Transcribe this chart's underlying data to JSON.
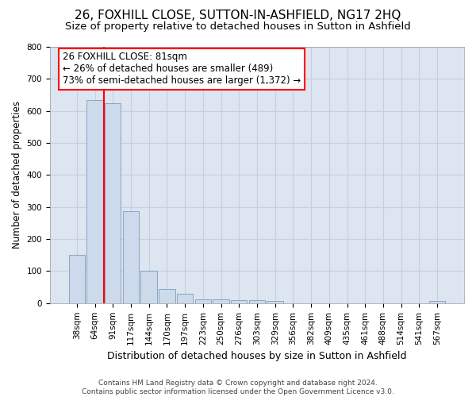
{
  "title": "26, FOXHILL CLOSE, SUTTON-IN-ASHFIELD, NG17 2HQ",
  "subtitle": "Size of property relative to detached houses in Sutton in Ashfield",
  "xlabel": "Distribution of detached houses by size in Sutton in Ashfield",
  "ylabel": "Number of detached properties",
  "footer_line1": "Contains HM Land Registry data © Crown copyright and database right 2024.",
  "footer_line2": "Contains public sector information licensed under the Open Government Licence v3.0.",
  "annotation_title": "26 FOXHILL CLOSE: 81sqm",
  "annotation_line1": "← 26% of detached houses are smaller (489)",
  "annotation_line2": "73% of semi-detached houses are larger (1,372) →",
  "bar_color": "#cddaeb",
  "bar_edge_color": "#7a9dc0",
  "marker_color": "red",
  "categories": [
    "38sqm",
    "64sqm",
    "91sqm",
    "117sqm",
    "144sqm",
    "170sqm",
    "197sqm",
    "223sqm",
    "250sqm",
    "276sqm",
    "303sqm",
    "329sqm",
    "356sqm",
    "382sqm",
    "409sqm",
    "435sqm",
    "461sqm",
    "488sqm",
    "514sqm",
    "541sqm",
    "567sqm"
  ],
  "values": [
    150,
    633,
    625,
    288,
    102,
    45,
    30,
    12,
    12,
    10,
    10,
    8,
    0,
    0,
    0,
    0,
    0,
    0,
    0,
    0,
    8
  ],
  "ylim": [
    0,
    800
  ],
  "yticks": [
    0,
    100,
    200,
    300,
    400,
    500,
    600,
    700,
    800
  ],
  "red_line_x": 1.5,
  "grid_color": "#c5cfe0",
  "bg_color": "#dde5f0",
  "title_fontsize": 11,
  "subtitle_fontsize": 9.5,
  "xlabel_fontsize": 9,
  "ylabel_fontsize": 8.5,
  "tick_fontsize": 7.5,
  "annotation_fontsize": 8.5,
  "footer_fontsize": 6.5
}
